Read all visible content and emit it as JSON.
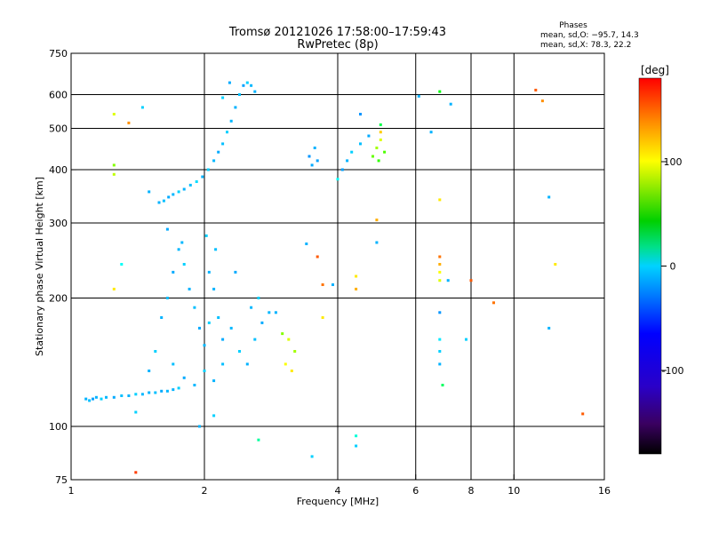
{
  "title": "Tromsø 20121026 17:58:00–17:59:43",
  "subtitle": "RwPretec (8p)",
  "phases_box": {
    "heading": "Phases",
    "line_o": "mean, sd,O: −95.7, 14.3",
    "line_x": "mean, sd,X:  78.3, 22.2"
  },
  "chart_data": {
    "type": "scatter",
    "xlabel": "Frequency [MHz]",
    "ylabel": "Stationary phase Virtual Height [km]",
    "xscale": "log",
    "yscale": "log",
    "xlim": [
      1,
      16
    ],
    "ylim": [
      75,
      750
    ],
    "xticks": [
      1,
      2,
      4,
      6,
      8,
      10,
      16
    ],
    "yticks": [
      75,
      100,
      200,
      300,
      400,
      500,
      600,
      750
    ],
    "grid_x": [
      2,
      4,
      6,
      8,
      10
    ],
    "grid_y": [
      100,
      200,
      300,
      400,
      500,
      600
    ],
    "grid": true,
    "colorbar": {
      "label": "[deg]",
      "range": [
        -180,
        180
      ],
      "ticks": [
        100,
        0,
        -100
      ]
    },
    "series": [
      {
        "name": "",
        "points": [
          [
            1.08,
            116,
            -110
          ],
          [
            1.1,
            115,
            -105
          ],
          [
            1.12,
            116,
            -115
          ],
          [
            1.14,
            117,
            -110
          ],
          [
            1.17,
            116,
            -100
          ],
          [
            1.2,
            117,
            -108
          ],
          [
            1.25,
            117,
            -112
          ],
          [
            1.3,
            118,
            -105
          ],
          [
            1.35,
            118,
            -110
          ],
          [
            1.4,
            119,
            -100
          ],
          [
            1.45,
            119,
            -108
          ],
          [
            1.5,
            120,
            -110
          ],
          [
            1.55,
            120,
            -105
          ],
          [
            1.6,
            121,
            -112
          ],
          [
            1.65,
            121,
            -108
          ],
          [
            1.7,
            122,
            -110
          ],
          [
            1.75,
            123,
            -100
          ],
          [
            1.58,
            335,
            -110
          ],
          [
            1.62,
            338,
            -105
          ],
          [
            1.66,
            345,
            -112
          ],
          [
            1.7,
            350,
            -108
          ],
          [
            1.75,
            355,
            -100
          ],
          [
            1.8,
            360,
            -110
          ],
          [
            1.86,
            368,
            -105
          ],
          [
            1.92,
            375,
            -95
          ],
          [
            1.98,
            385,
            -110
          ],
          [
            2.04,
            400,
            -100
          ],
          [
            2.1,
            420,
            -108
          ],
          [
            2.15,
            440,
            -112
          ],
          [
            2.2,
            460,
            -105
          ],
          [
            2.25,
            490,
            -100
          ],
          [
            2.3,
            520,
            -108
          ],
          [
            2.35,
            560,
            -110
          ],
          [
            2.4,
            600,
            -105
          ],
          [
            2.45,
            630,
            -115
          ],
          [
            2.5,
            640,
            -100
          ],
          [
            2.55,
            630,
            -108
          ],
          [
            2.6,
            610,
            -110
          ],
          [
            2.2,
            590,
            -100
          ],
          [
            2.28,
            640,
            -112
          ],
          [
            1.6,
            180,
            -110
          ],
          [
            1.65,
            200,
            -105
          ],
          [
            1.7,
            230,
            -112
          ],
          [
            1.75,
            260,
            -108
          ],
          [
            1.8,
            240,
            -100
          ],
          [
            1.85,
            210,
            -110
          ],
          [
            1.9,
            190,
            -105
          ],
          [
            1.95,
            170,
            -112
          ],
          [
            2.0,
            155,
            -108
          ],
          [
            2.05,
            175,
            -100
          ],
          [
            2.1,
            210,
            -110
          ],
          [
            2.15,
            180,
            -105
          ],
          [
            2.2,
            160,
            -112
          ],
          [
            2.3,
            170,
            -108
          ],
          [
            2.4,
            150,
            -100
          ],
          [
            2.5,
            140,
            -110
          ],
          [
            2.6,
            160,
            -105
          ],
          [
            2.7,
            175,
            -112
          ],
          [
            2.8,
            185,
            -108
          ],
          [
            1.55,
            150,
            -100
          ],
          [
            1.5,
            135,
            -110
          ],
          [
            1.7,
            140,
            -105
          ],
          [
            1.8,
            130,
            -112
          ],
          [
            1.9,
            125,
            -108
          ],
          [
            2.0,
            135,
            -100
          ],
          [
            2.1,
            128,
            -110
          ],
          [
            2.2,
            140,
            -105
          ],
          [
            1.65,
            290,
            -112
          ],
          [
            1.78,
            270,
            -108
          ],
          [
            2.02,
            280,
            -100
          ],
          [
            2.05,
            230,
            -110
          ],
          [
            2.12,
            260,
            -105
          ],
          [
            2.35,
            230,
            -112
          ],
          [
            2.55,
            190,
            -108
          ],
          [
            2.65,
            200,
            -100
          ],
          [
            2.9,
            185,
            -110
          ],
          [
            3.0,
            165,
            50
          ],
          [
            3.1,
            160,
            80
          ],
          [
            3.2,
            150,
            60
          ],
          [
            3.05,
            140,
            90
          ],
          [
            3.15,
            135,
            100
          ],
          [
            3.45,
            430,
            -120
          ],
          [
            3.55,
            450,
            -110
          ],
          [
            3.6,
            420,
            -115
          ],
          [
            3.5,
            410,
            -112
          ],
          [
            4.1,
            400,
            -115
          ],
          [
            4.2,
            420,
            -110
          ],
          [
            4.3,
            440,
            -100
          ],
          [
            4.5,
            460,
            -105
          ],
          [
            4.7,
            480,
            -112
          ],
          [
            4.8,
            430,
            40
          ],
          [
            4.9,
            450,
            60
          ],
          [
            5.0,
            470,
            80
          ],
          [
            4.95,
            420,
            20
          ],
          [
            5.1,
            440,
            30
          ],
          [
            5.0,
            490,
            110
          ],
          [
            1.25,
            540,
            80
          ],
          [
            1.25,
            410,
            50
          ],
          [
            1.25,
            390,
            70
          ],
          [
            1.25,
            210,
            100
          ],
          [
            1.3,
            240,
            -80
          ],
          [
            1.35,
            515,
            130
          ],
          [
            1.4,
            78,
            160
          ],
          [
            1.4,
            108,
            -100
          ],
          [
            1.45,
            560,
            -100
          ],
          [
            1.5,
            355,
            -110
          ],
          [
            1.95,
            100,
            -110
          ],
          [
            2.1,
            106,
            -100
          ],
          [
            2.65,
            93,
            -50
          ],
          [
            3.4,
            268,
            -110
          ],
          [
            3.5,
            85,
            -100
          ],
          [
            3.6,
            250,
            150
          ],
          [
            3.7,
            215,
            140
          ],
          [
            3.7,
            180,
            100
          ],
          [
            3.9,
            215,
            -110
          ],
          [
            4.0,
            380,
            -80
          ],
          [
            4.4,
            95,
            -70
          ],
          [
            4.4,
            90,
            -100
          ],
          [
            4.4,
            225,
            100
          ],
          [
            4.4,
            210,
            120
          ],
          [
            4.5,
            540,
            -120
          ],
          [
            4.9,
            270,
            -110
          ],
          [
            4.9,
            305,
            120
          ],
          [
            5.0,
            510,
            -20
          ],
          [
            6.1,
            595,
            -110
          ],
          [
            6.5,
            490,
            -110
          ],
          [
            6.8,
            610,
            0
          ],
          [
            6.8,
            340,
            100
          ],
          [
            6.8,
            250,
            140
          ],
          [
            6.8,
            240,
            120
          ],
          [
            6.8,
            230,
            90
          ],
          [
            6.8,
            220,
            80
          ],
          [
            6.8,
            185,
            -120
          ],
          [
            6.8,
            160,
            -90
          ],
          [
            6.8,
            150,
            -100
          ],
          [
            6.8,
            140,
            -110
          ],
          [
            6.9,
            125,
            -30
          ],
          [
            7.1,
            220,
            -110
          ],
          [
            7.2,
            570,
            -110
          ],
          [
            7.8,
            160,
            -100
          ],
          [
            8.0,
            220,
            150
          ],
          [
            9.0,
            195,
            140
          ],
          [
            11.2,
            615,
            150
          ],
          [
            11.6,
            580,
            130
          ],
          [
            12.0,
            345,
            -110
          ],
          [
            12.0,
            170,
            -110
          ],
          [
            12.4,
            240,
            100
          ],
          [
            14.3,
            107,
            150
          ]
        ]
      }
    ]
  }
}
